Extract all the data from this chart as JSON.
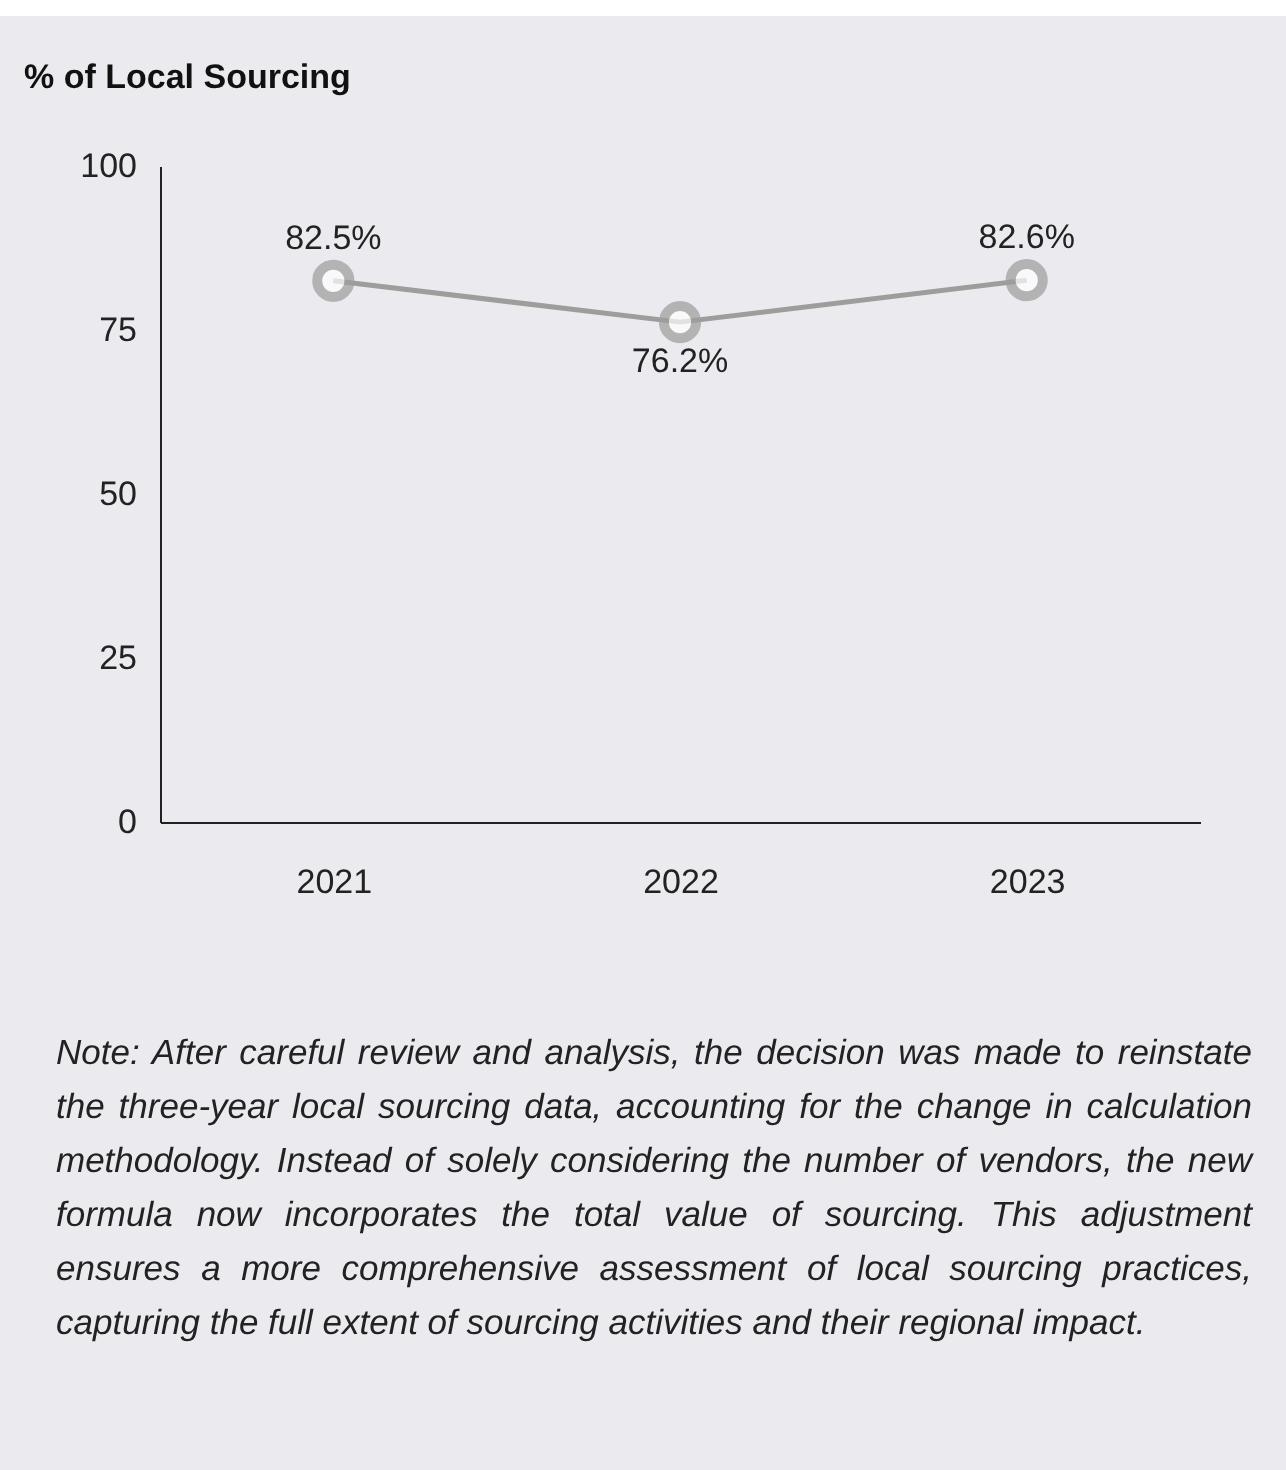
{
  "chart_data": {
    "type": "line",
    "title": "% of Local Sourcing",
    "categories": [
      "2021",
      "2022",
      "2023"
    ],
    "series": [
      {
        "color": "#9d9d9b",
        "values": [
          82.5,
          76.2,
          82.6
        ],
        "value_labels": [
          "82.5%",
          "76.2%",
          "82.6%"
        ]
      }
    ],
    "ylim": [
      0,
      100
    ],
    "yticks": [
      0,
      25,
      50,
      75,
      100
    ],
    "grid": false,
    "legend": false,
    "marker": "circle",
    "line_style": "solid",
    "annotations": [
      "Note: After careful review and analysis, the decision was made to reinstate the three-year local sourcing data, accounting for the change in calculation methodology. Instead of solely considering the number of vendors, the new formula now incorporates the total value of sourcing. This adjustment ensures a more comprehensive assessment of local sourcing practices, capturing the full extent of sourcing activities and their regional impact."
    ]
  }
}
